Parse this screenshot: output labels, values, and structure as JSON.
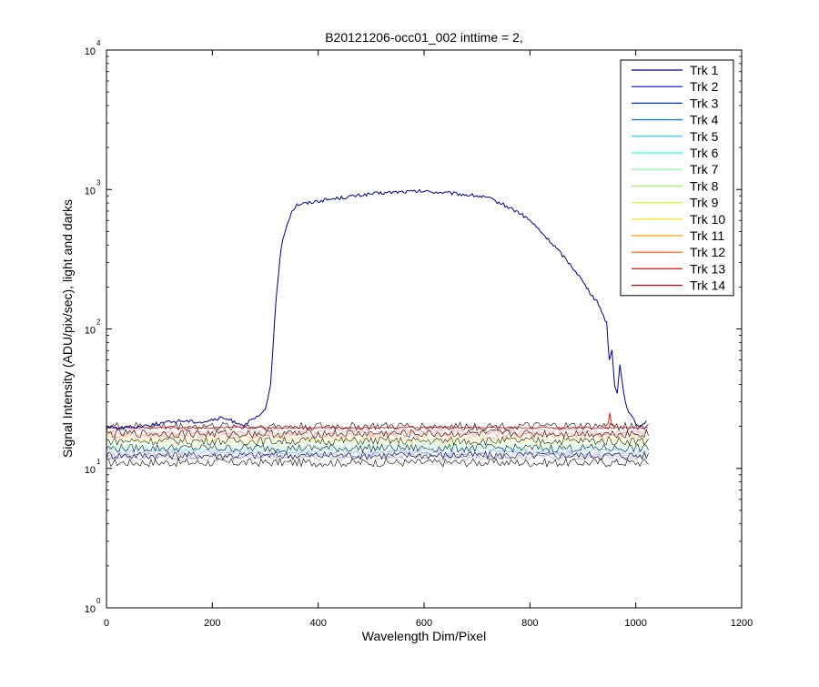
{
  "chart_data": {
    "type": "line",
    "title": "B20121206-occ01_002 inttime = 2,",
    "xlabel": "Wavelength Dim/Pixel",
    "ylabel": "Signal Intensity (ADU/pix/sec), light and darks",
    "xlim": [
      0,
      1200
    ],
    "ylim": [
      1,
      10000
    ],
    "yscale": "log",
    "grid": false,
    "legend_position": "top-right",
    "x_ticks": [
      "0",
      "200",
      "400",
      "600",
      "800",
      "1000",
      "1200"
    ],
    "y_ticks": [
      {
        "base": "10",
        "exp": "0"
      },
      {
        "base": "10",
        "exp": "1"
      },
      {
        "base": "10",
        "exp": "2"
      },
      {
        "base": "10",
        "exp": "3"
      },
      {
        "base": "10",
        "exp": "4"
      }
    ],
    "series": [
      {
        "name": "Trk 1",
        "color": "#00008f"
      },
      {
        "name": "Trk 2",
        "color": "#0000df"
      },
      {
        "name": "Trk 3",
        "color": "#0030ff"
      },
      {
        "name": "Trk 4",
        "color": "#0080ff"
      },
      {
        "name": "Trk 5",
        "color": "#00d0ff"
      },
      {
        "name": "Trk 6",
        "color": "#20ffdf"
      },
      {
        "name": "Trk 7",
        "color": "#70ff8f"
      },
      {
        "name": "Trk 8",
        "color": "#9fff60"
      },
      {
        "name": "Trk 9",
        "color": "#cfff30"
      },
      {
        "name": "Trk 10",
        "color": "#ffdf00"
      },
      {
        "name": "Trk 11",
        "color": "#ff9f00"
      },
      {
        "name": "Trk 12",
        "color": "#ff5000"
      },
      {
        "name": "Trk 13",
        "color": "#ff1000"
      },
      {
        "name": "Trk 14",
        "color": "#df0000"
      }
    ],
    "light_trace": {
      "x": [
        0,
        20,
        60,
        100,
        140,
        180,
        220,
        260,
        290,
        300,
        305,
        310,
        315,
        320,
        325,
        330,
        340,
        350,
        360,
        380,
        400,
        450,
        500,
        550,
        600,
        650,
        700,
        720,
        750,
        780,
        800,
        820,
        850,
        870,
        890,
        910,
        930,
        945,
        950,
        955,
        960,
        965,
        970,
        980,
        990,
        1000,
        1010,
        1020
      ],
      "y": [
        20,
        19.5,
        20,
        21,
        22,
        21.5,
        23,
        20.5,
        24,
        26,
        32,
        40,
        80,
        150,
        250,
        380,
        550,
        700,
        780,
        800,
        830,
        880,
        930,
        960,
        970,
        940,
        900,
        870,
        780,
        680,
        600,
        500,
        380,
        310,
        250,
        190,
        150,
        110,
        60,
        70,
        40,
        35,
        55,
        30,
        24,
        21,
        20,
        22
      ]
    },
    "dark_band": {
      "x_range": [
        0,
        1024
      ],
      "y_min": 11,
      "y_max": 20
    },
    "spike": {
      "x": [
        942,
        948,
        951,
        954,
        960
      ],
      "y": [
        20,
        21,
        25,
        21,
        20
      ]
    }
  }
}
